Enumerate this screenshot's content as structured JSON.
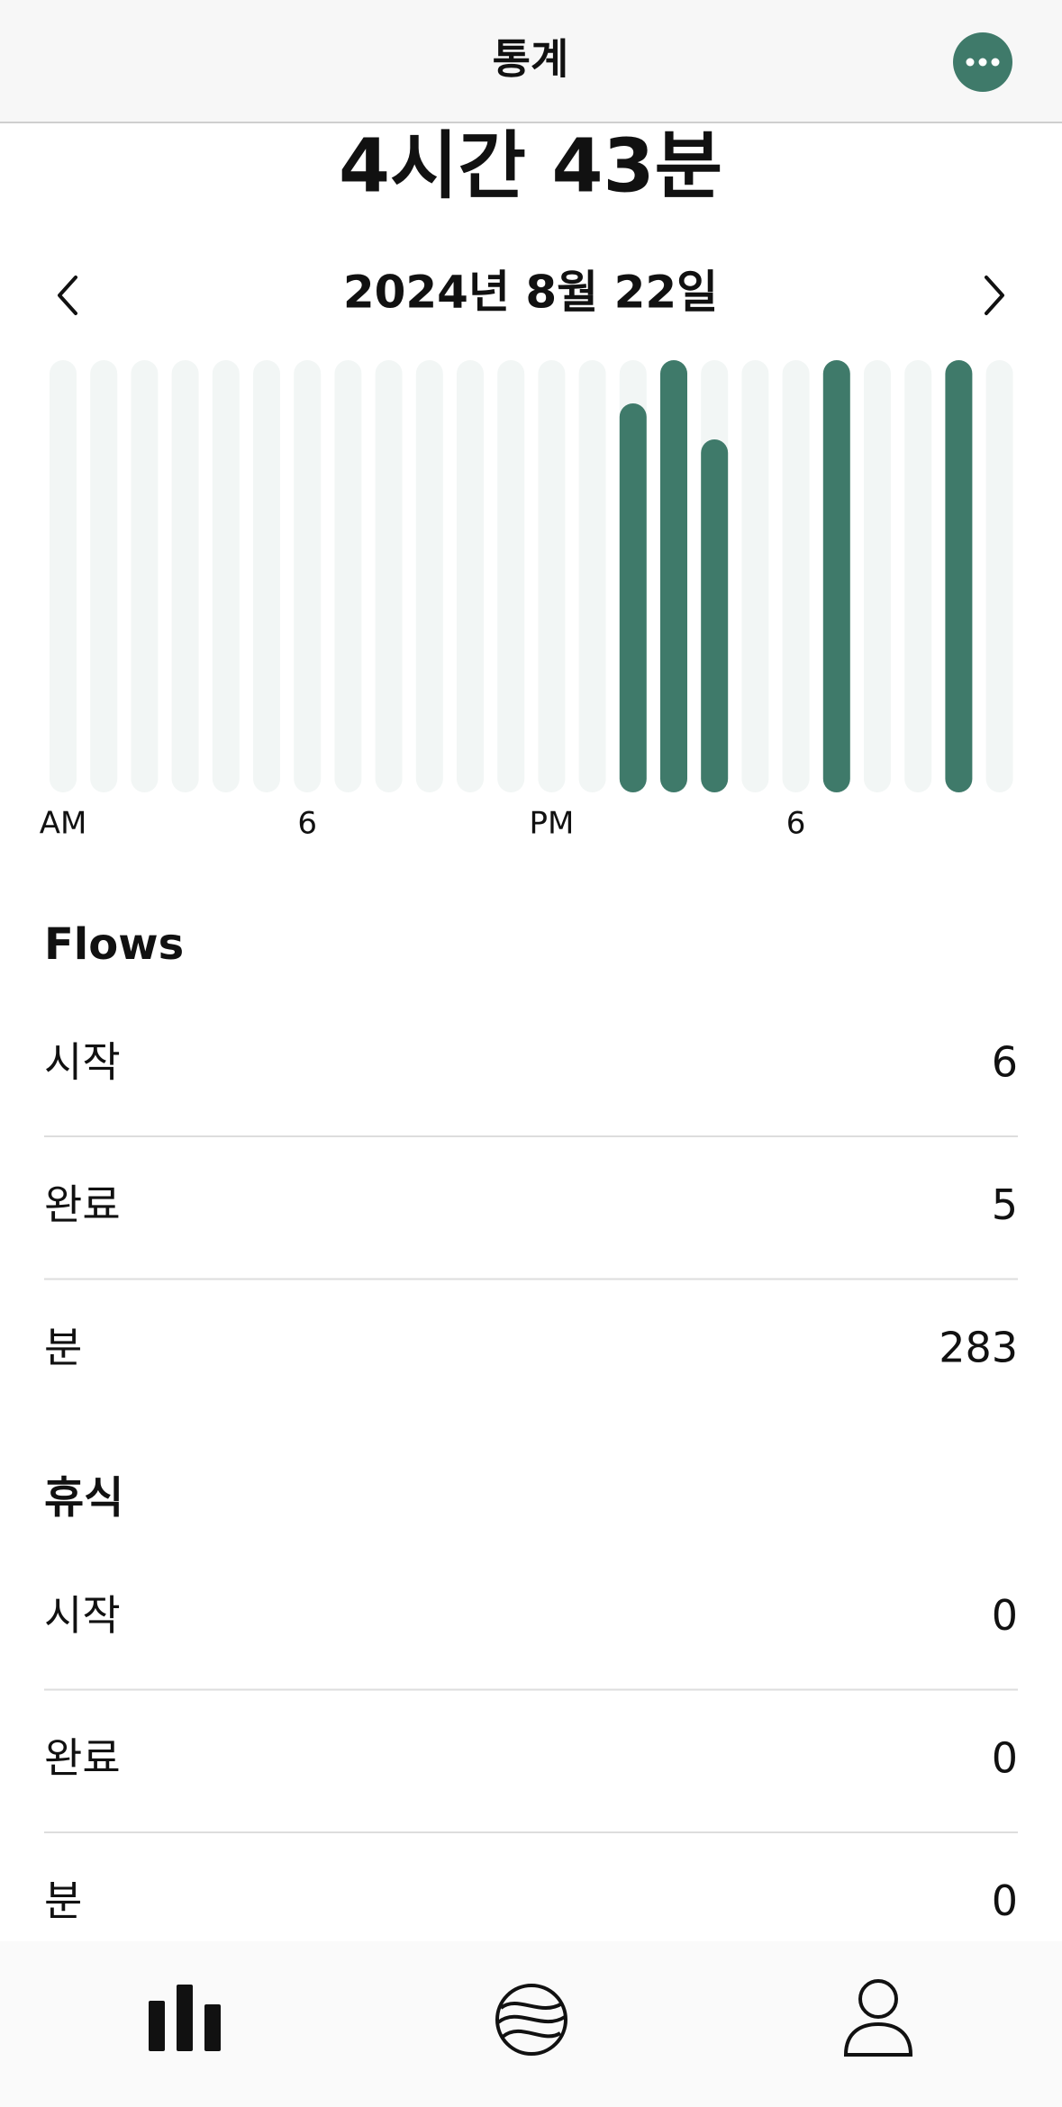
{
  "header": {
    "title": "통계"
  },
  "summary": "4시간 43분",
  "date": "2024년 8월 22일",
  "chart_data": {
    "type": "bar",
    "categories": [
      "AM",
      null,
      null,
      null,
      null,
      null,
      "6",
      null,
      null,
      null,
      null,
      null,
      "PM",
      null,
      null,
      null,
      null,
      null,
      "6",
      null,
      null,
      null,
      null,
      null
    ],
    "values": [
      0,
      0,
      0,
      0,
      0,
      0,
      0,
      0,
      0,
      0,
      0,
      0,
      0,
      0,
      54,
      60,
      49,
      0,
      0,
      60,
      0,
      0,
      60,
      0
    ],
    "color": "#3f7a6a",
    "ylim": [
      0,
      60
    ]
  },
  "sections": [
    {
      "title": "Flows",
      "rows": [
        {
          "label": "시작",
          "value": 6
        },
        {
          "label": "완료",
          "value": 5
        },
        {
          "label": "분",
          "value": 283
        }
      ]
    },
    {
      "title": "휴식",
      "rows": [
        {
          "label": "시작",
          "value": 0
        },
        {
          "label": "완료",
          "value": 0
        },
        {
          "label": "분",
          "value": 0
        }
      ]
    }
  ]
}
